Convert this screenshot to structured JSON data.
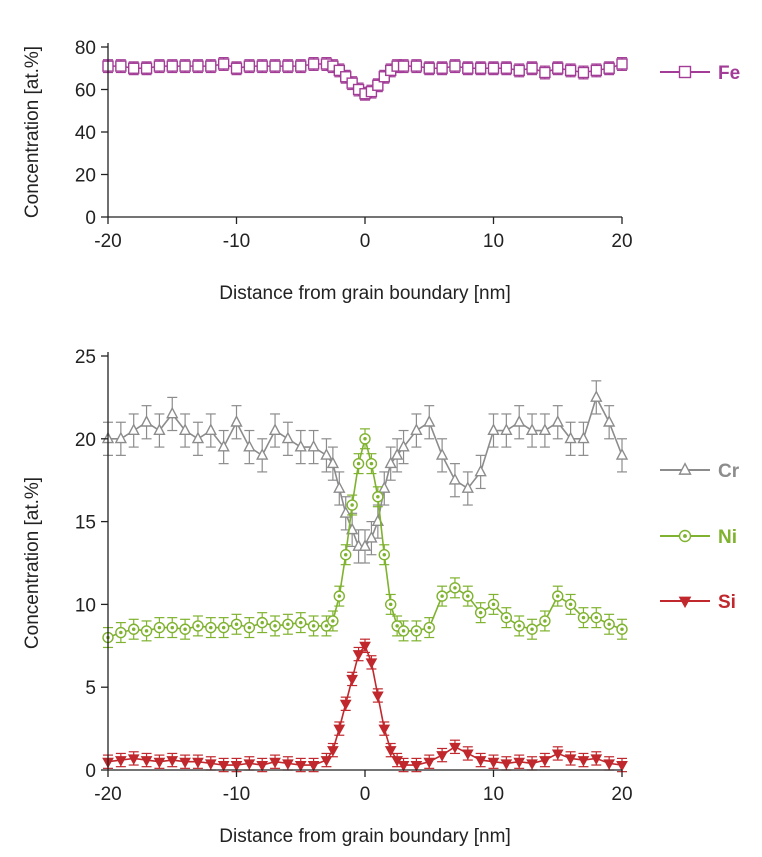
{
  "chart_data": [
    {
      "type": "line",
      "xlabel": "Distance from grain boundary [nm]",
      "ylabel": "Concentration [at.%]",
      "xlim": [
        -20,
        20
      ],
      "ylim": [
        0,
        80
      ],
      "x_ticks": [
        "-20",
        "-10",
        "0",
        "10",
        "20"
      ],
      "y_ticks": [
        "0",
        "20",
        "40",
        "60",
        "80"
      ],
      "grid": false,
      "legend_position": "right",
      "series": [
        {
          "name": "Fe",
          "color": "#a23c96",
          "marker": "square-open",
          "x": [
            -20,
            -19,
            -18,
            -17,
            -16,
            -15,
            -14,
            -13,
            -12,
            -11,
            -10,
            -9,
            -8,
            -7,
            -6,
            -5,
            -4,
            -3,
            -2.5,
            -2,
            -1.5,
            -1,
            -0.5,
            0,
            0.5,
            1,
            1.5,
            2,
            2.5,
            3,
            4,
            5,
            6,
            7,
            8,
            9,
            10,
            11,
            12,
            13,
            14,
            15,
            16,
            17,
            18,
            19,
            20
          ],
          "y": [
            71,
            71,
            70,
            70,
            71,
            71,
            71,
            71,
            71,
            72,
            70,
            71,
            71,
            71,
            71,
            71,
            72,
            72,
            71,
            69,
            66,
            63,
            60,
            58,
            59,
            62,
            66,
            69,
            71,
            71,
            71,
            70,
            70,
            71,
            70,
            70,
            70,
            70,
            69,
            70,
            68,
            70,
            69,
            68,
            69,
            70,
            72
          ],
          "error": 3
        }
      ]
    },
    {
      "type": "line",
      "xlabel": "Distance from grain boundary [nm]",
      "ylabel": "Concentration [at.%]",
      "xlim": [
        -20,
        20
      ],
      "ylim": [
        0,
        25
      ],
      "x_ticks": [
        "-20",
        "-10",
        "0",
        "10",
        "20"
      ],
      "y_ticks": [
        "0",
        "5",
        "10",
        "15",
        "20",
        "25"
      ],
      "grid": false,
      "legend_position": "right",
      "series": [
        {
          "name": "Cr",
          "color": "#8c8c8c",
          "marker": "triangle-up-open",
          "x": [
            -20,
            -19,
            -18,
            -17,
            -16,
            -15,
            -14,
            -13,
            -12,
            -11,
            -10,
            -9,
            -8,
            -7,
            -6,
            -5,
            -4,
            -3,
            -2.5,
            -2,
            -1.5,
            -1,
            -0.5,
            0,
            0.5,
            1,
            1.5,
            2,
            2.5,
            3,
            4,
            5,
            6,
            7,
            8,
            9,
            10,
            11,
            12,
            13,
            14,
            15,
            16,
            17,
            18,
            19,
            20
          ],
          "y": [
            20,
            20,
            20.5,
            21,
            20.5,
            21.5,
            20.5,
            20,
            20.5,
            19.5,
            21,
            19.5,
            19,
            20.5,
            20,
            19.5,
            19.5,
            19,
            18.5,
            17,
            15.5,
            14.5,
            13.5,
            13.5,
            14,
            15,
            17,
            18.5,
            19,
            19.5,
            20.5,
            21,
            19,
            17.5,
            17,
            18,
            20.5,
            20.5,
            21,
            20.5,
            20.5,
            21,
            20,
            20,
            22.5,
            21,
            19
          ],
          "error": 1
        },
        {
          "name": "Ni",
          "color": "#7fb22e",
          "marker": "circle-dot",
          "x": [
            -20,
            -19,
            -18,
            -17,
            -16,
            -15,
            -14,
            -13,
            -12,
            -11,
            -10,
            -9,
            -8,
            -7,
            -6,
            -5,
            -4,
            -3,
            -2.5,
            -2,
            -1.5,
            -1,
            -0.5,
            0,
            0.5,
            1,
            1.5,
            2,
            2.5,
            3,
            4,
            5,
            6,
            7,
            8,
            9,
            10,
            11,
            12,
            13,
            14,
            15,
            16,
            17,
            18,
            19,
            20
          ],
          "y": [
            8,
            8.3,
            8.5,
            8.4,
            8.6,
            8.6,
            8.5,
            8.7,
            8.6,
            8.6,
            8.8,
            8.6,
            8.9,
            8.7,
            8.8,
            8.9,
            8.7,
            8.7,
            9,
            10.5,
            13,
            16,
            18.5,
            20,
            18.5,
            16.5,
            13,
            10,
            8.7,
            8.4,
            8.4,
            8.6,
            10.5,
            11,
            10.5,
            9.5,
            10,
            9.2,
            8.7,
            8.5,
            9,
            10.5,
            10,
            9.2,
            9.2,
            8.8,
            8.5
          ],
          "error": 0.6
        },
        {
          "name": "Si",
          "color": "#c0282d",
          "marker": "triangle-down-filled",
          "x": [
            -20,
            -19,
            -18,
            -17,
            -16,
            -15,
            -14,
            -13,
            -12,
            -11,
            -10,
            -9,
            -8,
            -7,
            -6,
            -5,
            -4,
            -3,
            -2.5,
            -2,
            -1.5,
            -1,
            -0.5,
            0,
            0.5,
            1,
            1.5,
            2,
            2.5,
            3,
            4,
            5,
            6,
            7,
            8,
            9,
            10,
            11,
            12,
            13,
            14,
            15,
            16,
            17,
            18,
            19,
            20
          ],
          "y": [
            0.5,
            0.6,
            0.7,
            0.6,
            0.5,
            0.6,
            0.5,
            0.5,
            0.4,
            0.3,
            0.3,
            0.4,
            0.3,
            0.5,
            0.4,
            0.3,
            0.3,
            0.6,
            1.2,
            2.5,
            4,
            5.5,
            7,
            7.5,
            6.5,
            4.5,
            2.5,
            1.2,
            0.6,
            0.3,
            0.3,
            0.5,
            0.9,
            1.4,
            1,
            0.6,
            0.5,
            0.4,
            0.5,
            0.4,
            0.6,
            1,
            0.7,
            0.6,
            0.7,
            0.4,
            0.3
          ],
          "error": 0.4
        }
      ]
    }
  ]
}
